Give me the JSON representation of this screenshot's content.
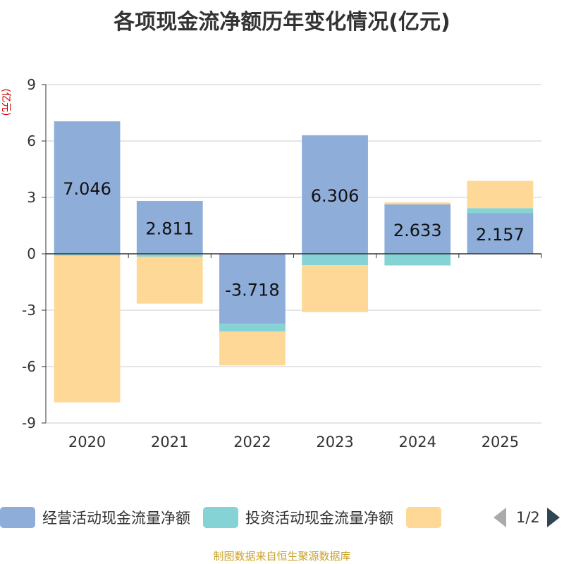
{
  "chart_data": {
    "type": "bar",
    "title": "各项现金流净额历年变化情况(亿元)",
    "ylabel": "(亿元)",
    "ylim": [
      -9,
      9
    ],
    "yticks": [
      9,
      6,
      3,
      0,
      -3,
      -6,
      -9
    ],
    "categories": [
      "2020",
      "2021",
      "2022",
      "2023",
      "2024",
      "2025"
    ],
    "stacked": true,
    "series": [
      {
        "name": "经营活动现金流量净额",
        "color": "#8eadd9",
        "values": [
          7.046,
          2.811,
          -3.718,
          6.306,
          2.633,
          2.157
        ],
        "show_labels": true
      },
      {
        "name": "投资活动现金流量净额",
        "color": "#86d3d6",
        "values": [
          -0.1,
          -0.15,
          -0.42,
          -0.6,
          -0.62,
          0.27
        ],
        "show_labels": false
      },
      {
        "name": "",
        "color": "#fdd896",
        "values": [
          -7.8,
          -2.5,
          -1.8,
          -2.5,
          0.1,
          1.45
        ],
        "show_labels": false
      }
    ]
  },
  "legend": {
    "items": [
      {
        "label": "经营活动现金流量净额",
        "color": "#8eadd9"
      },
      {
        "label": "投资活动现金流量净额",
        "color": "#86d3d6"
      },
      {
        "label": "",
        "color": "#fdd896"
      }
    ],
    "page": "1/2"
  },
  "source": "制图数据来自恒生聚源数据库"
}
